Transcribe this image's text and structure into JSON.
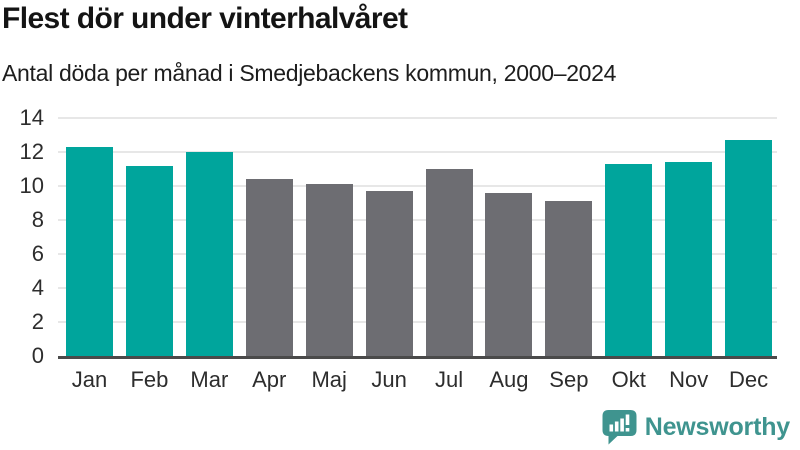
{
  "chart_data": {
    "type": "bar",
    "title": "Flest dör under vinterhalvåret",
    "subtitle": "Antal döda per månad i Smedjebackens kommun, 2000–2024",
    "categories": [
      "Jan",
      "Feb",
      "Mar",
      "Apr",
      "Maj",
      "Jun",
      "Jul",
      "Aug",
      "Sep",
      "Okt",
      "Nov",
      "Dec"
    ],
    "values": [
      12.3,
      11.2,
      12.0,
      10.4,
      10.1,
      9.7,
      11.0,
      9.6,
      9.1,
      11.3,
      11.4,
      12.7
    ],
    "bar_color_keys": [
      "winter",
      "winter",
      "winter",
      "summer",
      "summer",
      "summer",
      "summer",
      "summer",
      "summer",
      "winter",
      "winter",
      "winter"
    ],
    "xlabel": "",
    "ylabel": "",
    "ylim": [
      0,
      14
    ],
    "yticks": [
      0,
      2,
      4,
      6,
      8,
      10,
      12,
      14
    ],
    "grid": true,
    "legend": false,
    "legend_position": "none"
  },
  "colors": {
    "winter_bar": "#00a59c",
    "summer_bar": "#6d6d72",
    "gridline": "#e7e7e7",
    "axis_line": "#4a4a4a",
    "tick_label": "#2d2d2d",
    "title_text": "#141414",
    "brand_teal": "#3f948f"
  },
  "branding": {
    "logo_text": "Newsworthy",
    "logo_icon": "bar-chart-speech-bubble-icon"
  }
}
